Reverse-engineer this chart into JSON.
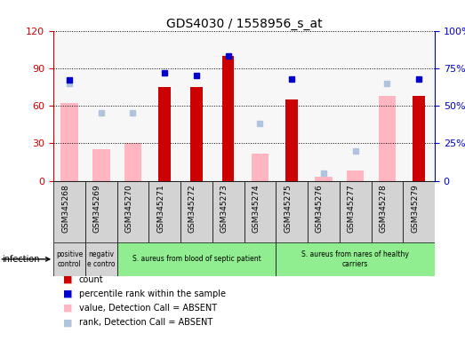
{
  "title": "GDS4030 / 1558956_s_at",
  "samples": [
    "GSM345268",
    "GSM345269",
    "GSM345270",
    "GSM345271",
    "GSM345272",
    "GSM345273",
    "GSM345274",
    "GSM345275",
    "GSM345276",
    "GSM345277",
    "GSM345278",
    "GSM345279"
  ],
  "count_values": [
    0,
    0,
    0,
    75,
    75,
    100,
    0,
    65,
    0,
    0,
    0,
    68
  ],
  "rank_values": [
    67,
    0,
    0,
    72,
    70,
    83,
    0,
    68,
    0,
    0,
    0,
    68
  ],
  "absent_value": [
    62,
    25,
    30,
    0,
    0,
    0,
    22,
    0,
    3,
    8,
    68,
    0
  ],
  "absent_rank": [
    65,
    45,
    45,
    0,
    0,
    0,
    38,
    0,
    5,
    20,
    65,
    0
  ],
  "ylim": [
    0,
    120
  ],
  "y2lim": [
    0,
    100
  ],
  "yticks": [
    0,
    30,
    60,
    90,
    120
  ],
  "ytick_labels": [
    "0",
    "30",
    "60",
    "90",
    "120"
  ],
  "y2ticks": [
    0,
    25,
    50,
    75,
    100
  ],
  "y2tick_labels": [
    "0",
    "25%",
    "50%",
    "75%",
    "100%"
  ],
  "count_color": "#CC0000",
  "rank_color": "#0000CC",
  "absent_val_color": "#FFB6C1",
  "absent_rank_color": "#B0C4DE",
  "infection_groups": [
    {
      "label": "positive\ncontrol",
      "start": 0,
      "end": 1,
      "color": "#d3d3d3"
    },
    {
      "label": "negativ\ne contro",
      "start": 1,
      "end": 2,
      "color": "#d3d3d3"
    },
    {
      "label": "S. aureus from blood of septic patient",
      "start": 2,
      "end": 7,
      "color": "#90EE90"
    },
    {
      "label": "S. aureus from nares of healthy\ncarriers",
      "start": 7,
      "end": 12,
      "color": "#90EE90"
    }
  ],
  "infection_label": "infection",
  "background_color": "#ffffff",
  "tick_bg_color": "#d3d3d3",
  "legend_items": [
    {
      "color": "#CC0000",
      "label": "count"
    },
    {
      "color": "#0000CC",
      "label": "percentile rank within the sample"
    },
    {
      "color": "#FFB6C1",
      "label": "value, Detection Call = ABSENT"
    },
    {
      "color": "#B0C4DE",
      "label": "rank, Detection Call = ABSENT"
    }
  ]
}
